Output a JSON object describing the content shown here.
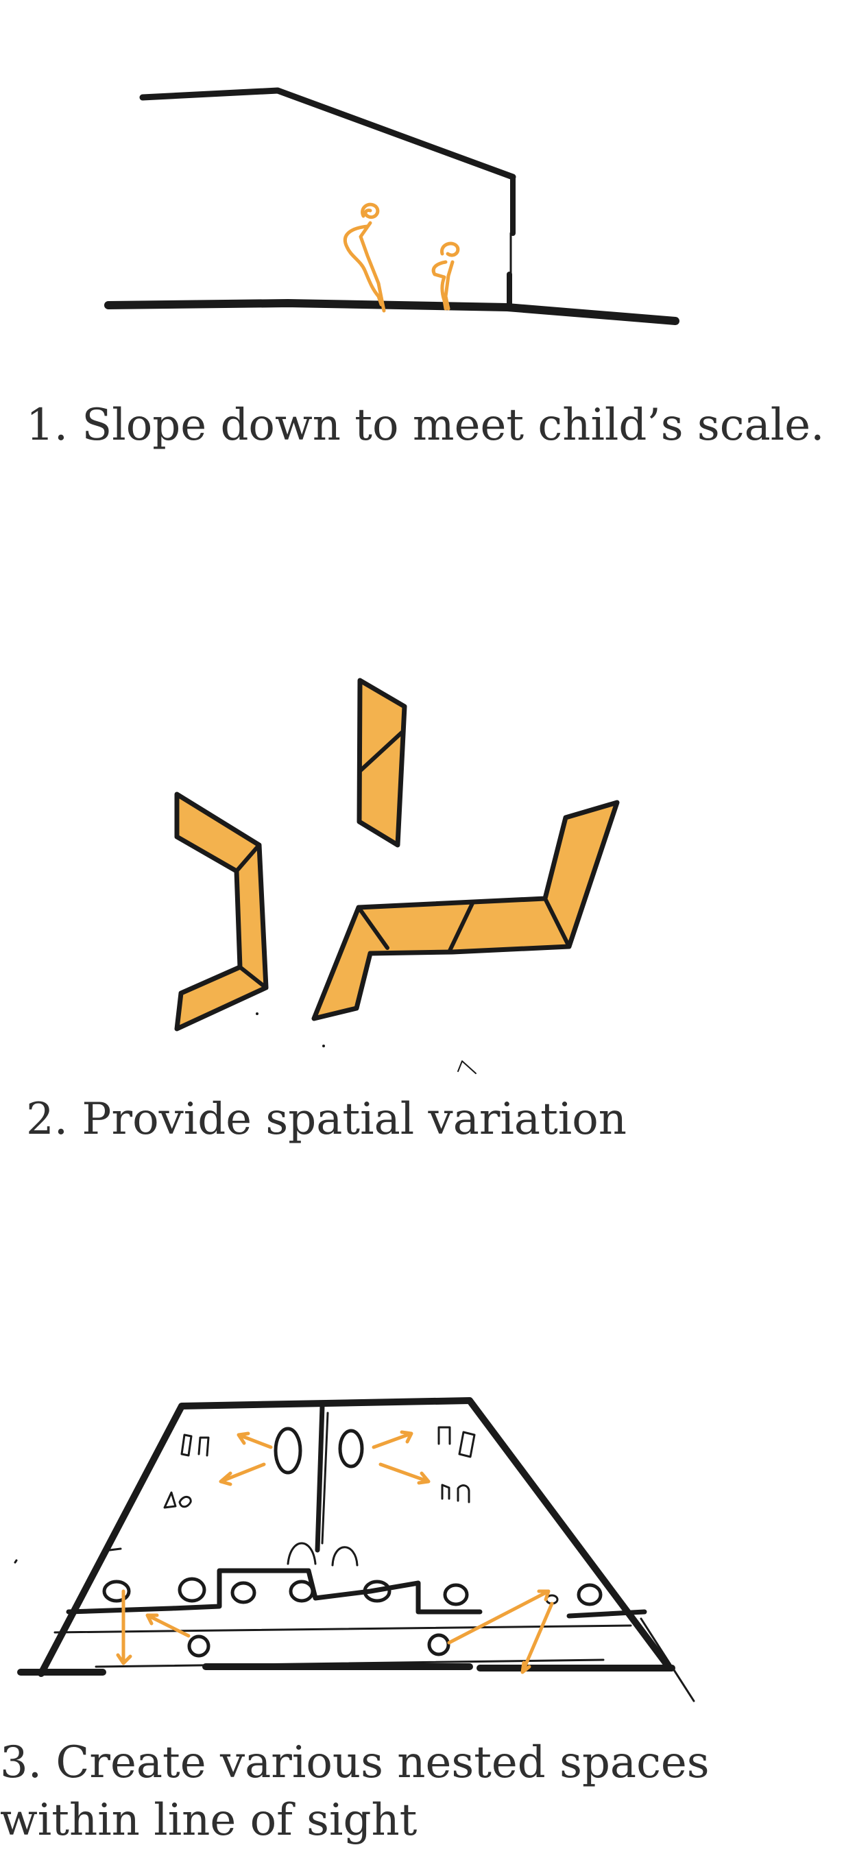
{
  "captions": {
    "step1": "1. Slope down to meet child’s scale.",
    "step2": "2. Provide spatial variation",
    "step3": "3. Create various nested spaces within line of sight"
  },
  "colors": {
    "ink": "#1a1a1a",
    "accent_orange": "#f0a23a",
    "text": "#2f2f2f",
    "background": "#ffffff"
  }
}
